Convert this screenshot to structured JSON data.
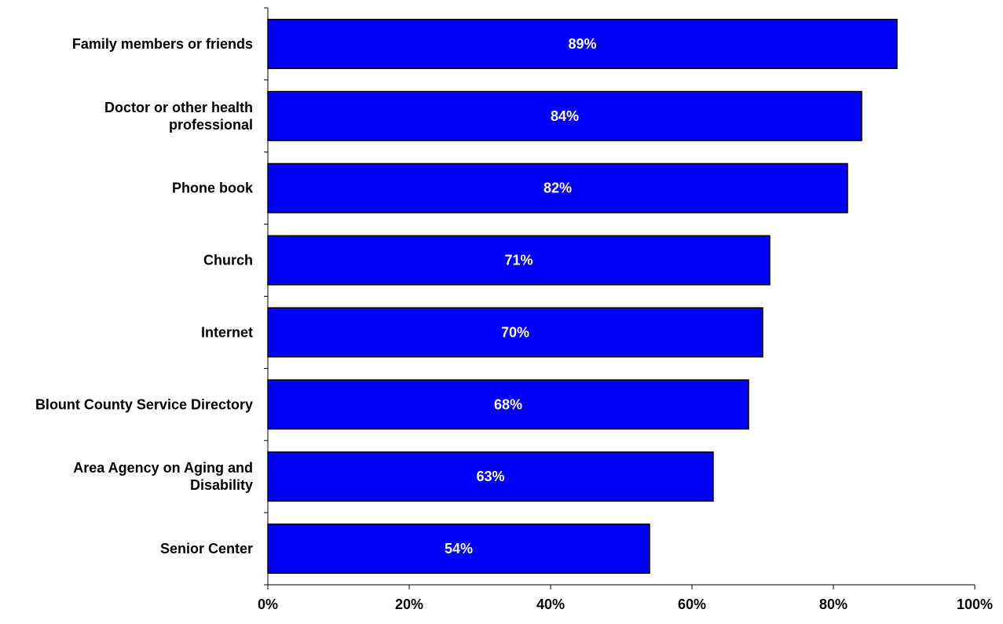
{
  "chart_data": {
    "type": "bar",
    "orientation": "horizontal",
    "categories": [
      "Family members or friends",
      "Doctor or other health professional",
      "Phone book",
      "Church",
      "Internet",
      "Blount County Service Directory",
      "Area Agency on Aging and Disability",
      "Senior Center"
    ],
    "category_lines": [
      [
        "Family members or friends"
      ],
      [
        "Doctor or other health",
        "professional"
      ],
      [
        "Phone book"
      ],
      [
        "Church"
      ],
      [
        "Internet"
      ],
      [
        "Blount County Service Directory"
      ],
      [
        "Area Agency on Aging and",
        "Disability"
      ],
      [
        "Senior Center"
      ]
    ],
    "values": [
      89,
      84,
      82,
      71,
      70,
      68,
      63,
      54
    ],
    "data_labels": [
      "89%",
      "84%",
      "82%",
      "71%",
      "70%",
      "68%",
      "63%",
      "54%"
    ],
    "xlim": [
      0,
      100
    ],
    "x_ticks": [
      0,
      20,
      40,
      60,
      80,
      100
    ],
    "x_tick_labels": [
      "0%",
      "20%",
      "40%",
      "60%",
      "80%",
      "100%"
    ],
    "title": "",
    "xlabel": "",
    "ylabel": "",
    "grid": false,
    "bar_color": "#0000FF",
    "bar_edge_color": "#000000",
    "label_color": "#FFFFFF"
  }
}
